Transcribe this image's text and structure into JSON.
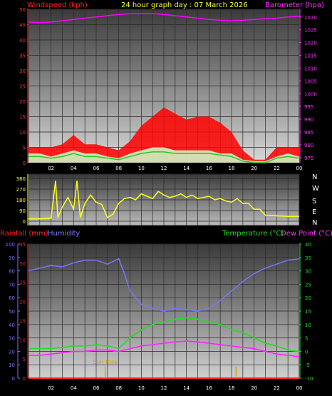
{
  "header": {
    "left_label": "Windspeed (kph)",
    "title": "24 hour graph day : 07 March 2026",
    "right_label": "Barometer (hpa)"
  },
  "colors": {
    "wind_max": "#ff0000",
    "wind_avg": "#ffffff",
    "wind_lull": "#22cc22",
    "barometer": "#ff00ff",
    "wind_dir": "#ffff22",
    "humidity": "#7777ff",
    "temperature": "#22dd22",
    "dew_point": "#ff22ff",
    "rainfall": "#ff2222",
    "sun_marker": "#ccaa00"
  },
  "x_ticks": [
    "02",
    "04",
    "06",
    "08",
    "10",
    "12",
    "14",
    "16",
    "18",
    "20",
    "22",
    "00"
  ],
  "chart_data": [
    {
      "type": "line",
      "name": "wind-barometer",
      "x_range": [
        0,
        24
      ],
      "y_left": {
        "label": "Windspeed (kph)",
        "range": [
          0,
          50
        ],
        "ticks": [
          0,
          5,
          10,
          15,
          20,
          25,
          30,
          35,
          40,
          45,
          50
        ]
      },
      "y_right": {
        "label": "Barometer (hpa)",
        "range": [
          973,
          1033
        ],
        "ticks": [
          975,
          980,
          985,
          990,
          995,
          1000,
          1005,
          1010,
          1015,
          1020,
          1025,
          1030
        ]
      },
      "series": [
        {
          "name": "Barometer (hpa)",
          "axis": "right",
          "x": [
            0,
            1,
            2,
            3,
            4,
            5,
            6,
            7,
            8,
            9,
            10,
            11,
            12,
            13,
            14,
            15,
            16,
            17,
            18,
            19,
            20,
            21,
            22,
            23,
            24
          ],
          "values": [
            1028,
            1027.8,
            1028,
            1028.5,
            1029,
            1029.5,
            1030,
            1030.5,
            1031,
            1031.2,
            1031.3,
            1031.3,
            1031,
            1030.5,
            1030,
            1029.5,
            1029,
            1028.7,
            1028.5,
            1028.7,
            1029,
            1029.3,
            1029.5,
            1030,
            1030.3
          ]
        },
        {
          "name": "Windspeed max",
          "axis": "left",
          "x": [
            0,
            1,
            2,
            3,
            4,
            5,
            6,
            7,
            8,
            9,
            10,
            11,
            12,
            13,
            14,
            15,
            16,
            17,
            18,
            19,
            20,
            21,
            22,
            23,
            24
          ],
          "values": [
            5,
            5,
            5,
            6,
            9,
            6,
            6,
            5,
            4,
            7,
            12,
            15,
            18,
            16,
            14,
            15,
            15,
            13,
            10,
            4,
            1,
            1,
            5,
            5,
            5
          ]
        },
        {
          "name": "Windspeed avg",
          "axis": "left",
          "x": [
            0,
            1,
            2,
            3,
            4,
            5,
            6,
            7,
            8,
            9,
            10,
            11,
            12,
            13,
            14,
            15,
            16,
            17,
            18,
            19,
            20,
            21,
            22,
            23,
            24
          ],
          "values": [
            3,
            3,
            2,
            3,
            4,
            3,
            3,
            2,
            1.5,
            3,
            4,
            5,
            5,
            4,
            4,
            4,
            4,
            3,
            3,
            1,
            0.5,
            0.5,
            2,
            3,
            2
          ]
        },
        {
          "name": "Windspeed lull",
          "axis": "left",
          "x": [
            0,
            1,
            2,
            3,
            4,
            5,
            6,
            7,
            8,
            9,
            10,
            11,
            12,
            13,
            14,
            15,
            16,
            17,
            18,
            19,
            20,
            21,
            22,
            23,
            24
          ],
          "values": [
            2,
            2,
            1.5,
            2,
            3,
            2,
            2,
            1.5,
            1,
            2,
            3,
            3.5,
            3.5,
            3,
            3,
            3,
            3,
            2.5,
            2,
            0.5,
            0,
            0,
            1.5,
            2,
            1.5
          ]
        }
      ]
    },
    {
      "type": "line",
      "name": "wind-direction",
      "x_range": [
        0,
        24
      ],
      "y_left": {
        "range": [
          0,
          360
        ],
        "ticks": [
          0,
          90,
          180,
          270,
          360
        ]
      },
      "y_right_labels": [
        "N",
        "W",
        "S",
        "E",
        "N"
      ],
      "series": [
        {
          "name": "Wind direction",
          "x": [
            0,
            1,
            2,
            2.4,
            2.6,
            3,
            3.5,
            4,
            4.3,
            4.6,
            5,
            5.5,
            6,
            6.5,
            7,
            7.5,
            8,
            8.5,
            9,
            9.5,
            10,
            10.5,
            11,
            11.5,
            12,
            12.5,
            13,
            13.5,
            14,
            14.5,
            15,
            15.5,
            16,
            16.5,
            17,
            17.5,
            18,
            18.5,
            19,
            19.5,
            20,
            20.5,
            21,
            22,
            23,
            24
          ],
          "values": [
            20,
            20,
            25,
            340,
            30,
            120,
            200,
            100,
            340,
            30,
            150,
            220,
            160,
            140,
            30,
            60,
            150,
            190,
            200,
            180,
            230,
            210,
            190,
            250,
            220,
            200,
            210,
            230,
            200,
            220,
            190,
            200,
            210,
            180,
            190,
            170,
            160,
            190,
            150,
            150,
            100,
            100,
            50,
            45,
            40,
            40
          ]
        }
      ]
    },
    {
      "type": "line",
      "name": "humidity-temperature",
      "x_range": [
        0,
        24
      ],
      "y_left_outer": {
        "label": "Humidity",
        "range": [
          0,
          100
        ],
        "ticks": [
          0,
          10,
          20,
          30,
          40,
          50,
          60,
          70,
          80,
          90,
          100
        ]
      },
      "y_left_inner": {
        "label": "Rainfall (mm)",
        "range": [
          0,
          35
        ],
        "ticks": [
          0,
          5,
          10,
          15,
          20,
          25,
          30,
          35
        ]
      },
      "y_right": {
        "label": "Temperature (°C) Dew Point (°C)",
        "range": [
          -10,
          40
        ],
        "ticks": [
          -10,
          -5,
          0,
          5,
          10,
          15,
          20,
          25,
          30,
          35,
          40
        ]
      },
      "series": [
        {
          "name": "Humidity",
          "axis": "left_outer",
          "x": [
            0,
            1,
            2,
            3,
            4,
            5,
            6,
            7,
            8,
            8.5,
            9,
            10,
            11,
            12,
            13,
            14,
            15,
            16,
            17,
            18,
            19,
            20,
            21,
            22,
            23,
            24
          ],
          "values": [
            80,
            82,
            84,
            83,
            86,
            88,
            88,
            85,
            89,
            78,
            65,
            55,
            52,
            50,
            52,
            51,
            50,
            52,
            58,
            65,
            72,
            78,
            82,
            85,
            88,
            89
          ]
        },
        {
          "name": "Temperature (°C)",
          "axis": "right",
          "x": [
            0,
            1,
            2,
            3,
            4,
            5,
            6,
            7,
            8,
            9,
            10,
            11,
            12,
            13,
            14,
            15,
            16,
            17,
            18,
            19,
            20,
            21,
            22,
            23,
            24
          ],
          "values": [
            1,
            1,
            1,
            1.5,
            2,
            2,
            2.5,
            2,
            1,
            5,
            8,
            10,
            11,
            12,
            12.5,
            12,
            11,
            10,
            8,
            7,
            5,
            3,
            2,
            0.5,
            0
          ]
        },
        {
          "name": "Dew Point (°C)",
          "axis": "right",
          "x": [
            0,
            1,
            2,
            3,
            4,
            5,
            6,
            7,
            8,
            9,
            10,
            11,
            12,
            13,
            14,
            15,
            16,
            17,
            18,
            19,
            20,
            21,
            22,
            23,
            24
          ],
          "values": [
            -1.5,
            -1.5,
            -1,
            -0.5,
            0,
            0,
            0.5,
            0.5,
            0,
            1,
            2,
            2.5,
            3,
            3.5,
            3.8,
            3.5,
            3,
            2.5,
            2,
            1.5,
            1,
            0,
            -1,
            -1.5,
            -2
          ]
        },
        {
          "name": "Rainfall (mm)",
          "axis": "left_inner",
          "x": [
            0,
            24
          ],
          "values": [
            0,
            0
          ]
        }
      ],
      "annotations": [
        {
          "text": "Sun Rise",
          "x": 6.8
        }
      ],
      "markers_x": [
        6.8,
        18.4
      ]
    }
  ],
  "lower": {
    "left_label": "Rainfall (mm)",
    "humidity_label": "Humidity",
    "right_label": "Temperature (°C)",
    "dew_label": "Dew Point (°C)"
  }
}
